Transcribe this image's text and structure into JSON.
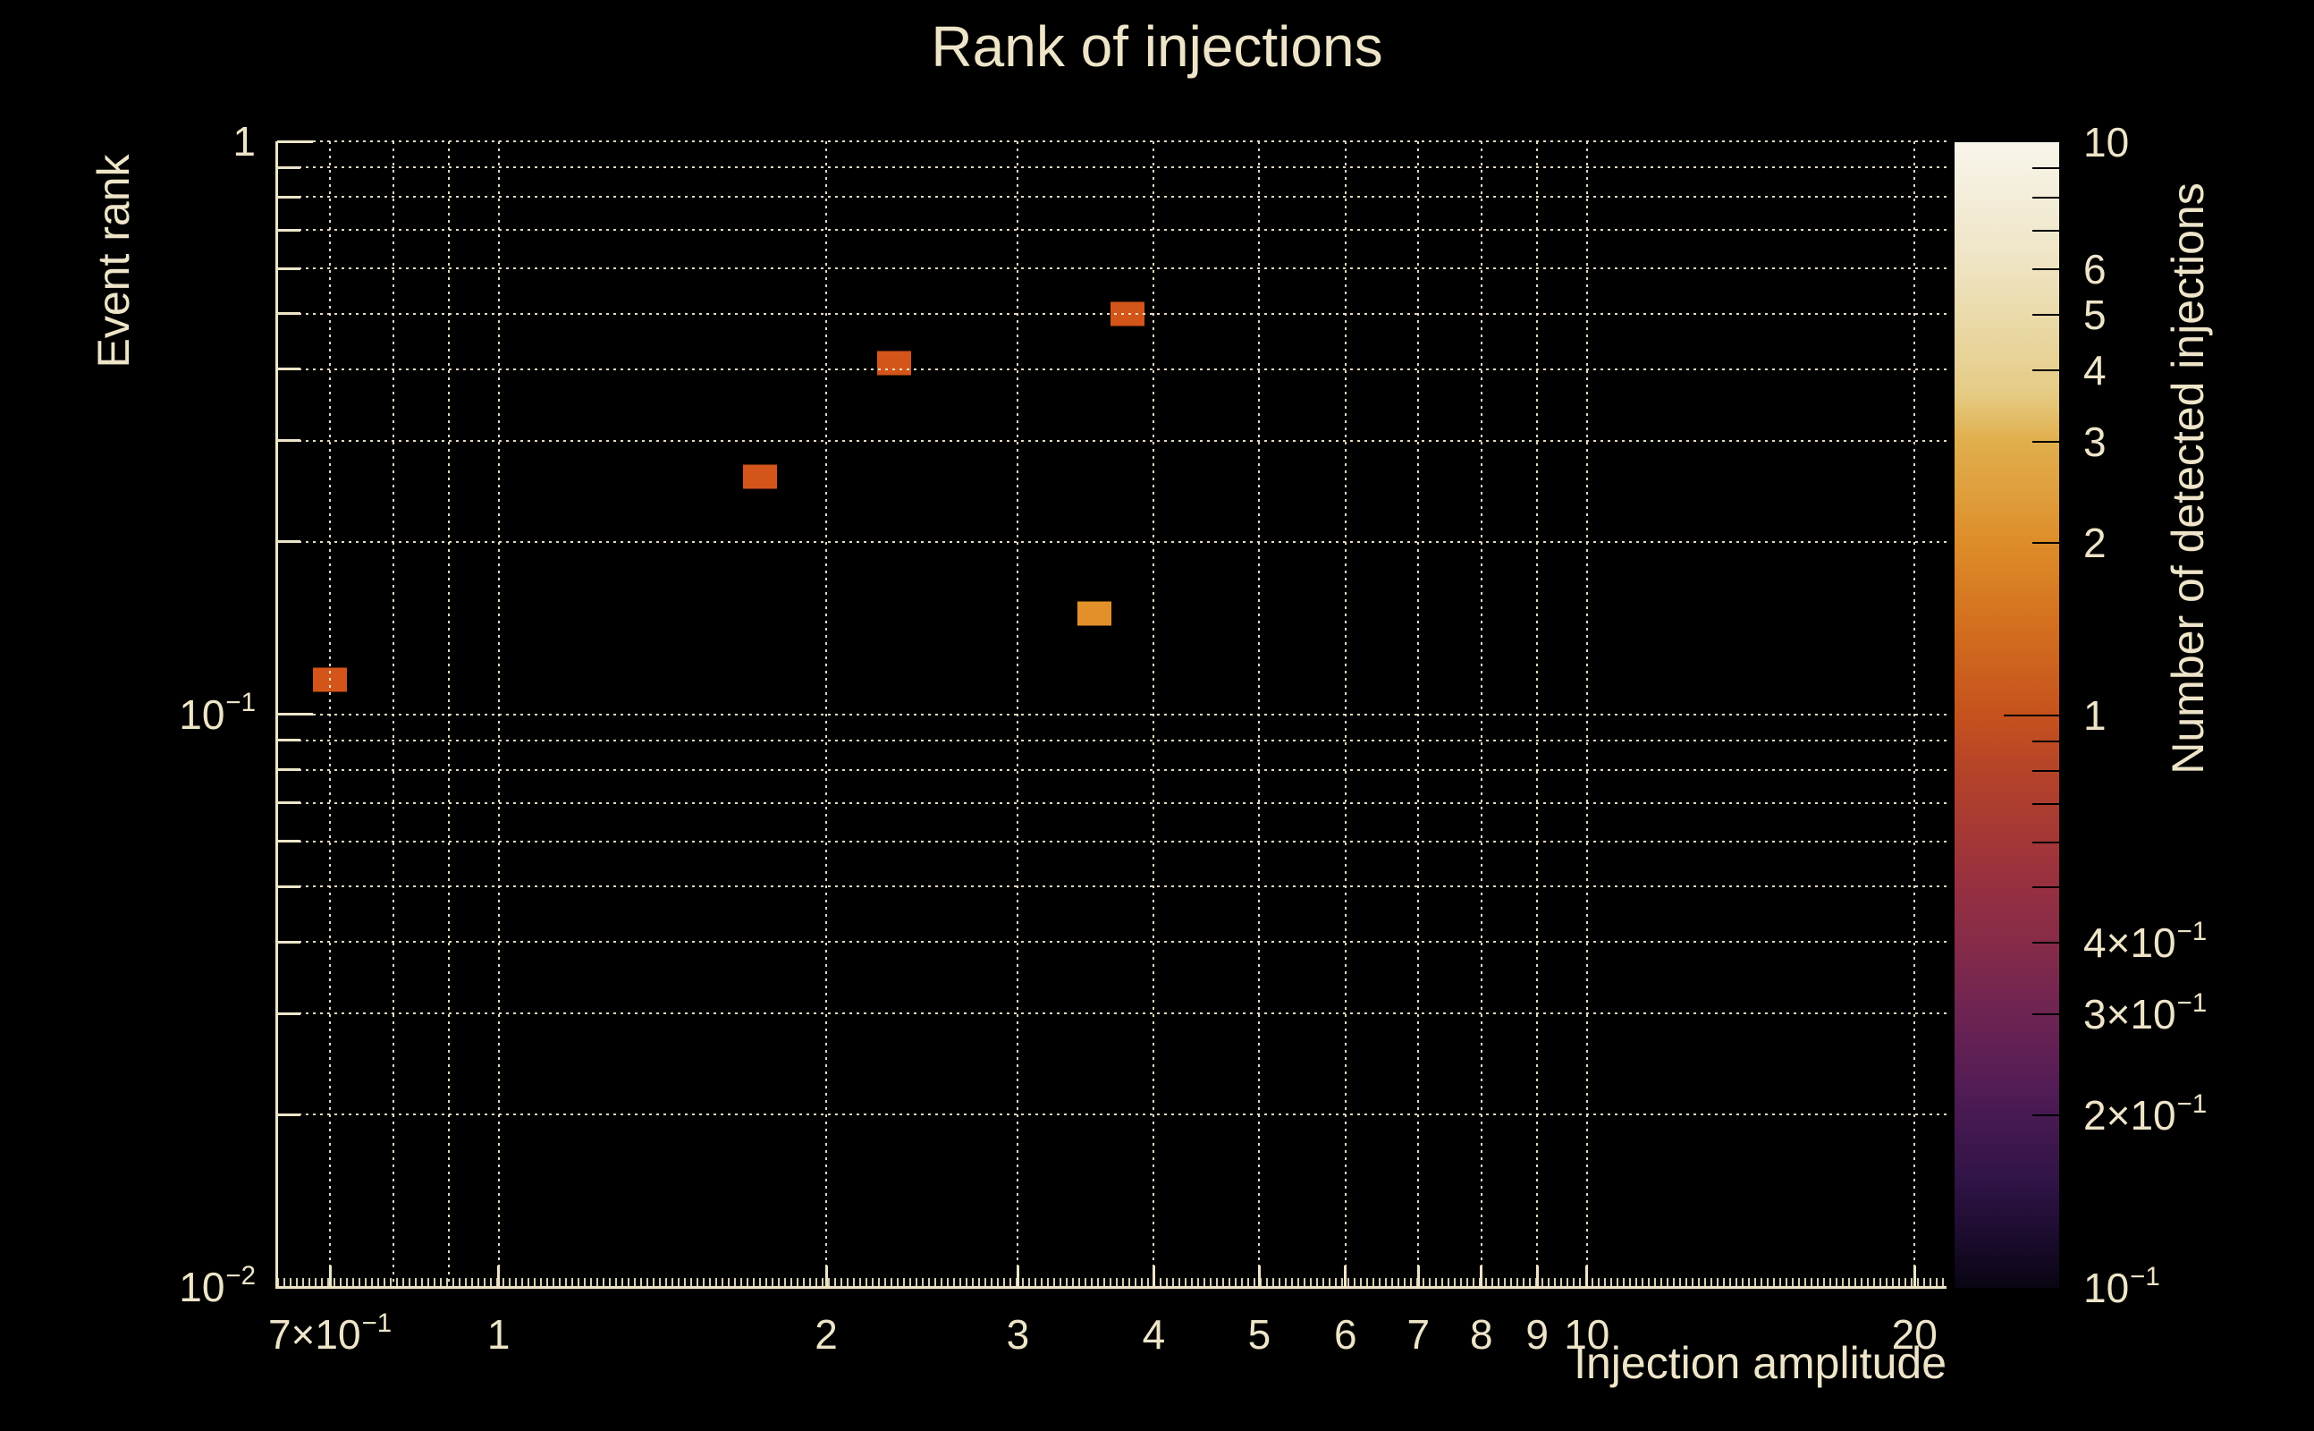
{
  "chart_data": {
    "type": "heatmap",
    "title": "Rank of injections",
    "xlabel": "Injection amplitude",
    "ylabel": "Event rank",
    "colorbar_label": "Number of detected injections",
    "xscale": "log",
    "yscale": "log",
    "zscale": "log",
    "xlim": [
      0.626,
      21.4
    ],
    "ylim": [
      0.01,
      1.0
    ],
    "zlim": [
      0.1,
      10
    ],
    "grid": "dotted",
    "legend_position": "right-colorbar",
    "x_ticks": [
      {
        "v": 0.7,
        "base": "7×10",
        "sup": "−1"
      },
      {
        "v": 1,
        "base": "1"
      },
      {
        "v": 2,
        "base": "2"
      },
      {
        "v": 3,
        "base": "3"
      },
      {
        "v": 4,
        "base": "4"
      },
      {
        "v": 5,
        "base": "5"
      },
      {
        "v": 6,
        "base": "6"
      },
      {
        "v": 7,
        "base": "7"
      },
      {
        "v": 8,
        "base": "8"
      },
      {
        "v": 9,
        "base": "9"
      },
      {
        "v": 10,
        "base": "10"
      },
      {
        "v": 20,
        "base": "20"
      }
    ],
    "x_grid_values": [
      0.7,
      0.8,
      0.9,
      1,
      2,
      3,
      4,
      5,
      6,
      7,
      8,
      9,
      10,
      20
    ],
    "y_ticks": [
      {
        "v": 1,
        "base": "1"
      },
      {
        "v": 0.1,
        "base": "10",
        "sup": "−1"
      },
      {
        "v": 0.01,
        "base": "10",
        "sup": "−2"
      }
    ],
    "y_grid_values": [
      1,
      0.9,
      0.8,
      0.7,
      0.6,
      0.5,
      0.4,
      0.3,
      0.2,
      0.1,
      0.09,
      0.08,
      0.07,
      0.06,
      0.05,
      0.04,
      0.03,
      0.02,
      0.01
    ],
    "y_minor_tick_values": [
      0.9,
      0.8,
      0.7,
      0.6,
      0.5,
      0.4,
      0.3,
      0.2,
      0.09,
      0.08,
      0.07,
      0.06,
      0.05,
      0.04,
      0.03,
      0.02
    ],
    "y_major_tick_values": [
      1,
      0.1,
      0.01
    ],
    "points": [
      {
        "x": 0.7,
        "y": 0.115,
        "count": 1
      },
      {
        "x": 1.74,
        "y": 0.26,
        "count": 1
      },
      {
        "x": 2.31,
        "y": 0.41,
        "count": 1
      },
      {
        "x": 3.78,
        "y": 0.5,
        "count": 1
      },
      {
        "x": 3.53,
        "y": 0.15,
        "count": 2
      }
    ],
    "colorbar_ticks": [
      {
        "v": 10,
        "base": "10"
      },
      {
        "v": 6,
        "base": "6"
      },
      {
        "v": 5,
        "base": "5"
      },
      {
        "v": 4,
        "base": "4"
      },
      {
        "v": 3,
        "base": "3"
      },
      {
        "v": 2,
        "base": "2"
      },
      {
        "v": 1,
        "base": "1"
      },
      {
        "v": 0.4,
        "base": "4×10",
        "sup": "−1"
      },
      {
        "v": 0.3,
        "base": "3×10",
        "sup": "−1"
      },
      {
        "v": 0.2,
        "base": "2×10",
        "sup": "−1"
      },
      {
        "v": 0.1,
        "base": "10",
        "sup": "−1"
      }
    ],
    "colorbar_minor_tick_values": [
      9,
      8,
      7,
      6,
      5,
      4,
      3,
      2,
      0.9,
      0.8,
      0.7,
      0.6,
      0.5,
      0.4,
      0.3,
      0.2
    ],
    "colorbar_major_tick_values": [
      1
    ]
  },
  "colors": {
    "background": "#000000",
    "foreground": "#EEE5C9",
    "count_colors": {
      "1": "#D3551A",
      "2": "#E2912A"
    },
    "colormap_stops": [
      [
        0,
        "#F8F5EA"
      ],
      [
        5,
        "#F3EDD9"
      ],
      [
        11,
        "#EEE3C1"
      ],
      [
        16,
        "#EAD9A6"
      ],
      [
        22,
        "#E5CB84"
      ],
      [
        26,
        "#E1AF4D"
      ],
      [
        31,
        "#DF9D3B"
      ],
      [
        35,
        "#DD8D29"
      ],
      [
        42,
        "#D4701F"
      ],
      [
        50,
        "#C5521D"
      ],
      [
        56,
        "#B2402B"
      ],
      [
        62,
        "#A03539"
      ],
      [
        65,
        "#963040"
      ],
      [
        70,
        "#862B49"
      ],
      [
        76,
        "#6E2453"
      ],
      [
        82,
        "#551D55"
      ],
      [
        85,
        "#471A52"
      ],
      [
        91,
        "#2F1345"
      ],
      [
        96,
        "#190B2B"
      ],
      [
        100,
        "#0A0512"
      ]
    ]
  }
}
